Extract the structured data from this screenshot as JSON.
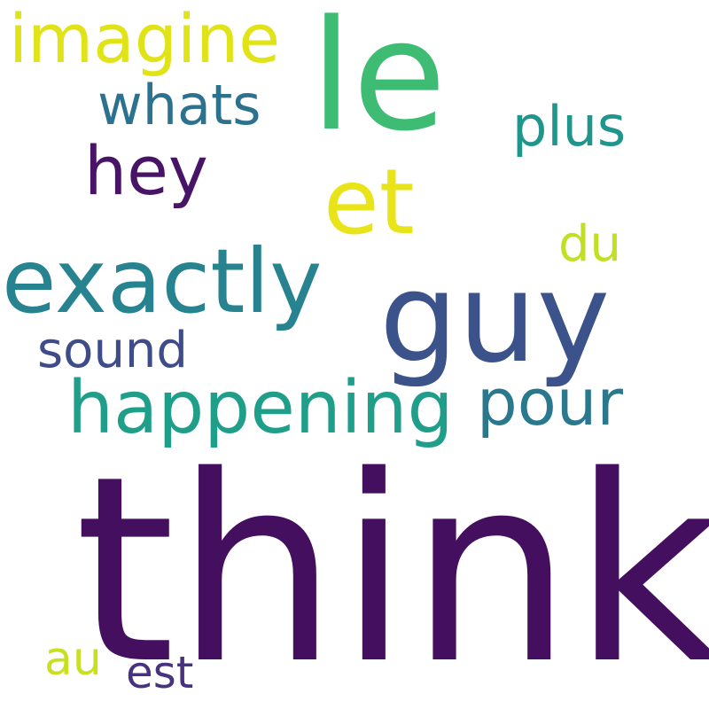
{
  "words": [
    {
      "key": "think",
      "text": "think",
      "color": "#440f5e"
    },
    {
      "key": "le",
      "text": "le",
      "color": "#3fbc73"
    },
    {
      "key": "guy",
      "text": "guy",
      "color": "#3b528b"
    },
    {
      "key": "exactly",
      "text": "exactly",
      "color": "#26838f"
    },
    {
      "key": "et",
      "text": "et",
      "color": "#e8e419"
    },
    {
      "key": "happening",
      "text": "happening",
      "color": "#1f9e89"
    },
    {
      "key": "imagine",
      "text": "imagine",
      "color": "#dfe318"
    },
    {
      "key": "hey",
      "text": "hey",
      "color": "#481467"
    },
    {
      "key": "pour",
      "text": "pour",
      "color": "#2a788e"
    },
    {
      "key": "plus",
      "text": "plus",
      "color": "#1f958b"
    },
    {
      "key": "whats",
      "text": "whats",
      "color": "#2c728e"
    },
    {
      "key": "du",
      "text": "du",
      "color": "#c2df23"
    },
    {
      "key": "sound",
      "text": "sound",
      "color": "#3e4c8a"
    },
    {
      "key": "au",
      "text": "au",
      "color": "#c8e020"
    },
    {
      "key": "est",
      "text": "est",
      "color": "#46327e"
    }
  ]
}
